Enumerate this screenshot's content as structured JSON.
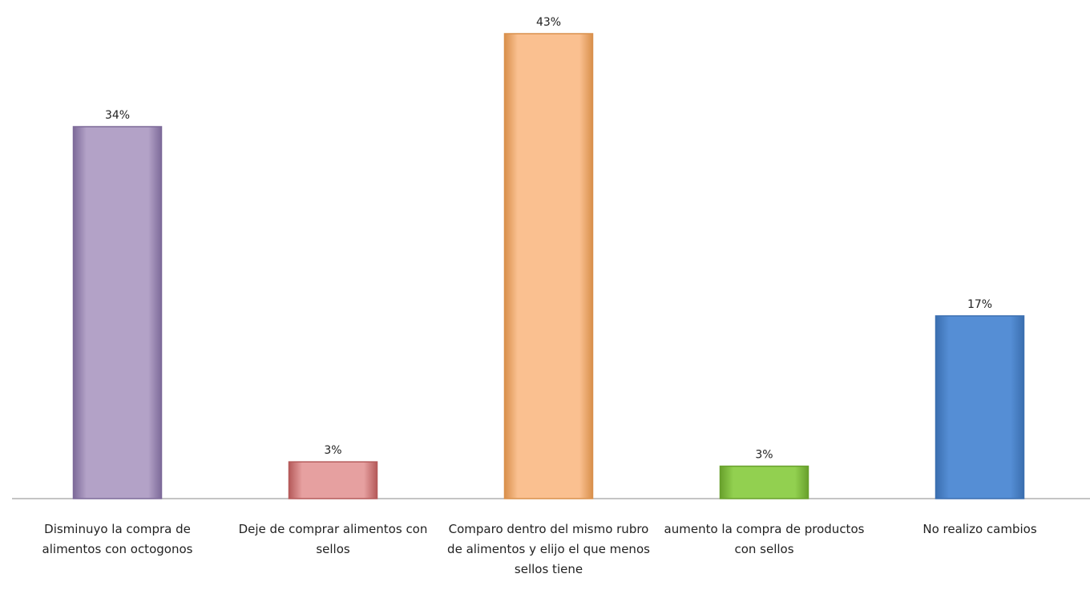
{
  "chart_data": {
    "type": "bar",
    "categories": [
      "Disminuyo la compra de alimentos con octogonos",
      "Deje de comprar alimentos con sellos",
      "Comparo dentro del mismo rubro de alimentos y elijo el que menos sellos tiene",
      "aumento la compra de productos con sellos",
      "No realizo cambios"
    ],
    "values": [
      34.4,
      3.4,
      43,
      3,
      16.9
    ],
    "value_labels": [
      "34%",
      "3%",
      "43%",
      "3%",
      "17%"
    ],
    "colors": [
      "#b3a2c7",
      "#e6a0a0",
      "#fac090",
      "#92d050",
      "#558ed5"
    ],
    "edge_colors": [
      "#7d6a99",
      "#b55a5a",
      "#d9904c",
      "#68a02c",
      "#3b6fb0"
    ]
  }
}
